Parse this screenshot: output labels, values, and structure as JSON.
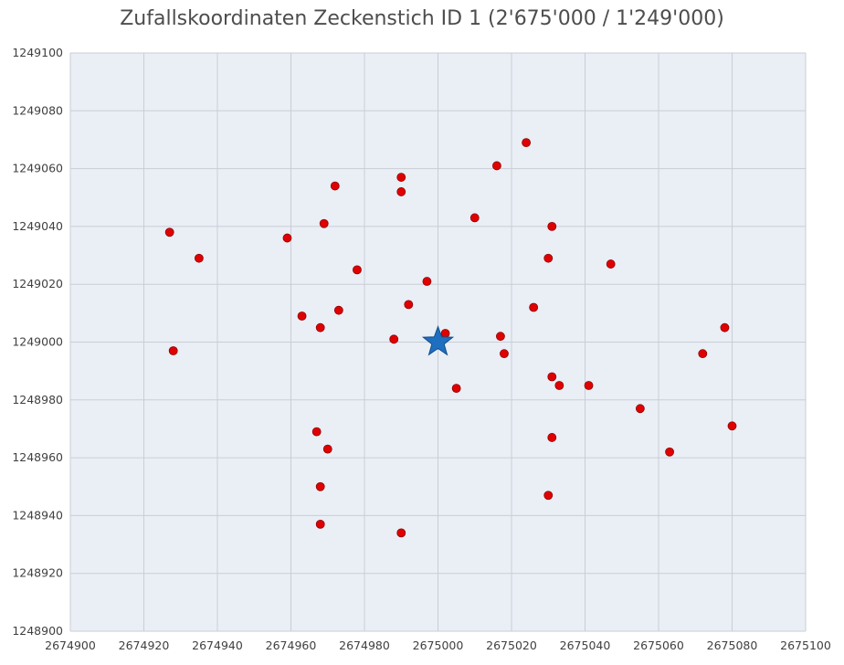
{
  "chart_data": {
    "type": "scatter",
    "title": "Zufallskoordinaten Zeckenstich ID 1 (2'675'000 / 1'249'000)",
    "xlabel": "",
    "ylabel": "",
    "xlim": [
      2674900,
      2675100
    ],
    "ylim": [
      1248900,
      1249100
    ],
    "x_ticks": [
      2674900,
      2674920,
      2674940,
      2674960,
      2674980,
      2675000,
      2675020,
      2675040,
      2675060,
      2675080,
      2675100
    ],
    "y_ticks": [
      1248900,
      1248920,
      1248940,
      1248960,
      1248980,
      1249000,
      1249020,
      1249040,
      1249060,
      1249080,
      1249100
    ],
    "grid": true,
    "colors": {
      "background": "#eaeef5",
      "grid": "#c9ced6",
      "point": "#e00000",
      "point_edge": "#8c0000",
      "center": "#1f6fc0"
    },
    "series": [
      {
        "marker": "circle",
        "points": [
          [
            2675024,
            1249069
          ],
          [
            2675016,
            1249061
          ],
          [
            2674990,
            1249057
          ],
          [
            2674972,
            1249054
          ],
          [
            2674990,
            1249052
          ],
          [
            2675010,
            1249043
          ],
          [
            2674969,
            1249041
          ],
          [
            2675031,
            1249040
          ],
          [
            2674927,
            1249038
          ],
          [
            2674959,
            1249036
          ],
          [
            2674935,
            1249029
          ],
          [
            2675030,
            1249029
          ],
          [
            2675047,
            1249027
          ],
          [
            2674978,
            1249025
          ],
          [
            2674997,
            1249021
          ],
          [
            2674992,
            1249013
          ],
          [
            2674973,
            1249011
          ],
          [
            2675026,
            1249012
          ],
          [
            2674963,
            1249009
          ],
          [
            2674968,
            1249005
          ],
          [
            2675078,
            1249005
          ],
          [
            2675002,
            1249003
          ],
          [
            2674988,
            1249001
          ],
          [
            2675017,
            1249002
          ],
          [
            2674928,
            1248997
          ],
          [
            2675018,
            1248996
          ],
          [
            2675072,
            1248996
          ],
          [
            2675031,
            1248988
          ],
          [
            2675005,
            1248984
          ],
          [
            2675033,
            1248985
          ],
          [
            2675041,
            1248985
          ],
          [
            2675055,
            1248977
          ],
          [
            2674967,
            1248969
          ],
          [
            2675080,
            1248971
          ],
          [
            2675031,
            1248967
          ],
          [
            2674970,
            1248963
          ],
          [
            2675063,
            1248962
          ],
          [
            2674968,
            1248950
          ],
          [
            2675030,
            1248947
          ],
          [
            2674968,
            1248937
          ],
          [
            2674990,
            1248934
          ]
        ]
      },
      {
        "marker": "star",
        "points": [
          [
            2675000,
            1249000
          ]
        ]
      }
    ]
  }
}
